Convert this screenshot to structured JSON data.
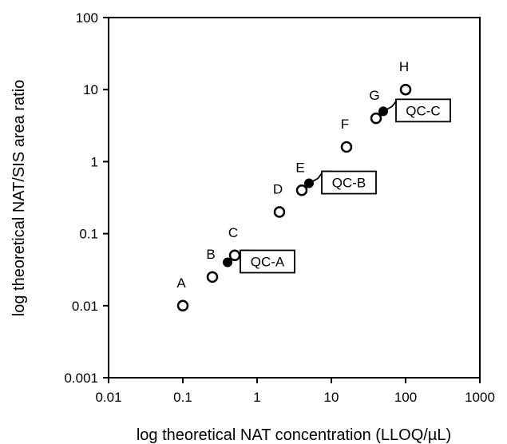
{
  "chart_data": {
    "type": "scatter",
    "title": "",
    "xlabel": "log theoretical NAT concentration (LLOQ/µL)",
    "ylabel": "log theoretical NAT/SIS area ratio",
    "xscale": "log",
    "yscale": "log",
    "xlim": [
      0.01,
      1000
    ],
    "ylim": [
      0.001,
      100
    ],
    "x_ticks": [
      "0.01",
      "0.1",
      "1",
      "10",
      "100",
      "1000"
    ],
    "y_ticks": [
      "0.001",
      "0.01",
      "0.1",
      "1",
      "10",
      "100"
    ],
    "grid": false,
    "series": [
      {
        "marker": "open-circle",
        "points": [
          {
            "label": "A",
            "x": 0.1,
            "y": 0.01
          },
          {
            "label": "B",
            "x": 0.25,
            "y": 0.025
          },
          {
            "label": "C",
            "x": 0.5,
            "y": 0.05
          },
          {
            "label": "D",
            "x": 2,
            "y": 0.2
          },
          {
            "label": "E",
            "x": 4,
            "y": 0.4
          },
          {
            "label": "F",
            "x": 16,
            "y": 1.6
          },
          {
            "label": "G",
            "x": 40,
            "y": 4
          },
          {
            "label": "H",
            "x": 100,
            "y": 10
          }
        ]
      },
      {
        "marker": "filled-circle",
        "points": [
          {
            "label": "QC-A",
            "x": 0.4,
            "y": 0.04
          },
          {
            "label": "QC-B",
            "x": 5,
            "y": 0.5
          },
          {
            "label": "QC-C",
            "x": 50,
            "y": 5
          }
        ]
      }
    ]
  }
}
